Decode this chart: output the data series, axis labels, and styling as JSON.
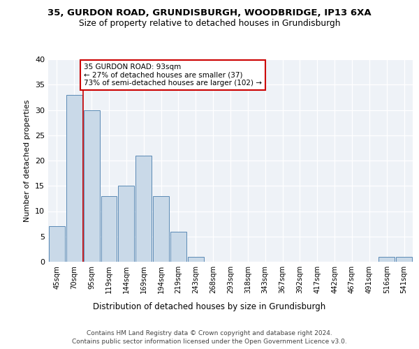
{
  "title1": "35, GURDON ROAD, GRUNDISBURGH, WOODBRIDGE, IP13 6XA",
  "title2": "Size of property relative to detached houses in Grundisburgh",
  "xlabel": "Distribution of detached houses by size in Grundisburgh",
  "ylabel": "Number of detached properties",
  "bin_labels": [
    "45sqm",
    "70sqm",
    "95sqm",
    "119sqm",
    "144sqm",
    "169sqm",
    "194sqm",
    "219sqm",
    "243sqm",
    "268sqm",
    "293sqm",
    "318sqm",
    "343sqm",
    "367sqm",
    "392sqm",
    "417sqm",
    "442sqm",
    "467sqm",
    "491sqm",
    "516sqm",
    "541sqm"
  ],
  "bar_values": [
    7,
    33,
    30,
    13,
    15,
    21,
    13,
    6,
    1,
    0,
    0,
    0,
    0,
    0,
    0,
    0,
    0,
    0,
    0,
    1,
    1
  ],
  "bar_color": "#c9d9e8",
  "bar_edge_color": "#5a8ab5",
  "vline_color": "#cc0000",
  "vline_x_index": 1.5,
  "annotation_box_text": "35 GURDON ROAD: 93sqm\n← 27% of detached houses are smaller (37)\n73% of semi-detached houses are larger (102) →",
  "annotation_box_color": "#cc0000",
  "annotation_box_fill": "white",
  "ylim": [
    0,
    40
  ],
  "yticks": [
    0,
    5,
    10,
    15,
    20,
    25,
    30,
    35,
    40
  ],
  "footer1": "Contains HM Land Registry data © Crown copyright and database right 2024.",
  "footer2": "Contains public sector information licensed under the Open Government Licence v3.0.",
  "plot_bg_color": "#eef2f7"
}
